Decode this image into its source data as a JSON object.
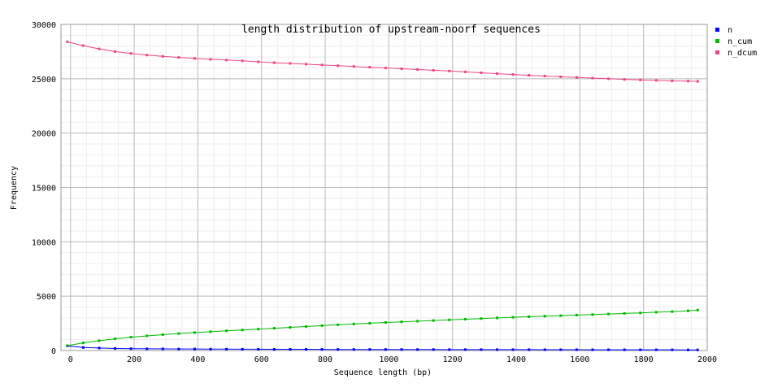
{
  "chart_data": {
    "type": "line",
    "title": "length distribution of upstream-noorf sequences",
    "xlabel": "Sequence length (bp)",
    "ylabel": "Frequency",
    "xlim": [
      -30,
      2000
    ],
    "ylim": [
      0,
      30000
    ],
    "x_ticks": [
      0,
      200,
      400,
      600,
      800,
      1000,
      1200,
      1400,
      1600,
      1800,
      2000
    ],
    "y_ticks": [
      0,
      5000,
      10000,
      15000,
      20000,
      25000,
      30000
    ],
    "grid": true,
    "legend_position": "right",
    "x": [
      -10,
      40,
      90,
      140,
      190,
      240,
      290,
      340,
      390,
      440,
      490,
      540,
      590,
      640,
      690,
      740,
      790,
      840,
      890,
      940,
      990,
      1040,
      1090,
      1140,
      1190,
      1240,
      1290,
      1340,
      1390,
      1440,
      1490,
      1540,
      1590,
      1640,
      1690,
      1740,
      1790,
      1840,
      1890,
      1940,
      1970
    ],
    "series": [
      {
        "name": "n",
        "color": "#0000ff",
        "values": [
          420,
          280,
          230,
          190,
          170,
          160,
          150,
          140,
          140,
          130,
          130,
          120,
          120,
          110,
          110,
          110,
          105,
          100,
          100,
          100,
          95,
          95,
          90,
          90,
          85,
          85,
          85,
          80,
          80,
          80,
          75,
          75,
          75,
          70,
          70,
          70,
          65,
          65,
          65,
          60,
          60
        ]
      },
      {
        "name": "n_cum",
        "color": "#00bb00",
        "values": [
          450,
          700,
          900,
          1080,
          1230,
          1350,
          1460,
          1560,
          1650,
          1730,
          1810,
          1890,
          1970,
          2050,
          2130,
          2210,
          2290,
          2370,
          2440,
          2510,
          2580,
          2640,
          2700,
          2760,
          2820,
          2880,
          2940,
          3000,
          3060,
          3110,
          3160,
          3210,
          3260,
          3310,
          3360,
          3410,
          3460,
          3520,
          3580,
          3650,
          3720
        ]
      },
      {
        "name": "n_dcum",
        "color": "#ee4488",
        "values": [
          28400,
          28050,
          27750,
          27500,
          27330,
          27180,
          27060,
          26960,
          26870,
          26790,
          26720,
          26650,
          26560,
          26480,
          26410,
          26340,
          26270,
          26200,
          26130,
          26060,
          25990,
          25920,
          25850,
          25780,
          25710,
          25630,
          25550,
          25470,
          25390,
          25320,
          25250,
          25180,
          25120,
          25060,
          25000,
          24940,
          24890,
          24850,
          24810,
          24780,
          24760
        ]
      }
    ]
  }
}
